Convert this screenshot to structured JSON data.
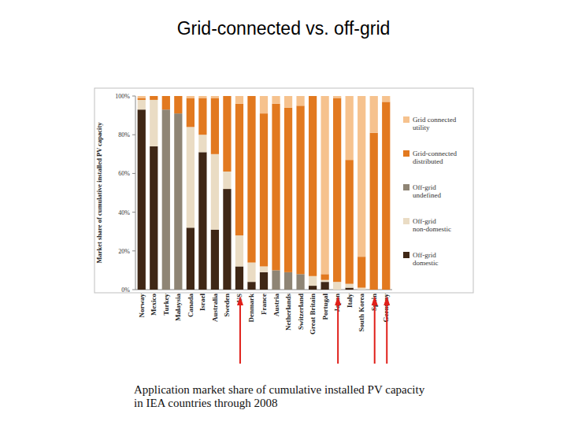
{
  "chart_data": {
    "type": "bar",
    "stacked": true,
    "title": "Grid-connected vs. off-grid",
    "annotations": [
      "Application market share of cumulative installed PV capacity",
      "in IEA countries through 2008"
    ],
    "y_label": "Market share of cumulative installed PV capacity",
    "categories": [
      "Norway",
      "Mexico",
      "Turkey",
      "Malaysia",
      "Canada",
      "Israel",
      "Australia",
      "Sweden",
      "US",
      "Denmark",
      "France",
      "Austria",
      "Netherlands",
      "Switzerland",
      "Great Britain",
      "Portugal",
      "Japan",
      "Italy",
      "South Korea",
      "Spain",
      "Germany"
    ],
    "series": [
      {
        "name": "Off-grid domestic",
        "color": "#3f2716",
        "values": [
          93,
          74,
          0,
          0,
          32,
          71,
          31,
          52,
          12,
          4,
          9,
          0,
          0,
          0,
          2,
          4,
          0,
          1,
          0,
          0,
          0
        ]
      },
      {
        "name": "Off-grid non-domestic",
        "color": "#eadcc4",
        "values": [
          5,
          24,
          0,
          0,
          52,
          9,
          39,
          9,
          16,
          10,
          3,
          0,
          0,
          0,
          5,
          1,
          4,
          2,
          1,
          0,
          0
        ]
      },
      {
        "name": "Off-grid undefined",
        "color": "#8f8575",
        "values": [
          0,
          0,
          93,
          91,
          0,
          0,
          0,
          0,
          0,
          0,
          0,
          10,
          9,
          8,
          0,
          0,
          0,
          0,
          0,
          0,
          0
        ]
      },
      {
        "name": "Grid-connected distributed",
        "color": "#e2791f",
        "values": [
          1,
          2,
          7,
          9,
          15,
          19,
          29,
          39,
          68,
          86,
          79,
          86,
          85,
          87,
          93,
          3,
          95,
          64,
          16,
          81,
          97
        ]
      },
      {
        "name": "Grid connected utility",
        "color": "#f6c28e",
        "values": [
          1,
          0,
          0,
          0,
          1,
          1,
          1,
          0,
          4,
          0,
          9,
          4,
          6,
          5,
          0,
          92,
          1,
          33,
          83,
          19,
          3
        ]
      }
    ],
    "ylim": [
      0,
      100
    ],
    "yticks": [
      {
        "value": 0,
        "label": "0%"
      },
      {
        "value": 20,
        "label": "20%"
      },
      {
        "value": 40,
        "label": "40%"
      },
      {
        "value": 60,
        "label": "60%"
      },
      {
        "value": 80,
        "label": "80%"
      },
      {
        "value": 100,
        "label": "100%"
      }
    ],
    "grid": false,
    "legend": "right"
  }
}
